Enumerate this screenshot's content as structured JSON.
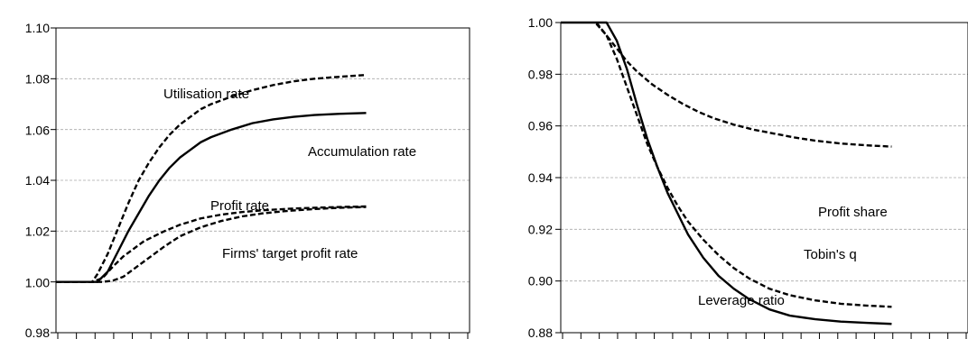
{
  "chart_data": [
    {
      "type": "line",
      "ylim": [
        0.98,
        1.1
      ],
      "yticks": [
        0.98,
        1.0,
        1.02,
        1.04,
        1.06,
        1.08,
        1.1
      ],
      "ytick_labels": [
        "0.98",
        "1.00",
        "1.02",
        "1.04",
        "1.06",
        "1.08",
        "1.10"
      ],
      "grid": true,
      "x": [
        0,
        1,
        2,
        3,
        4,
        5,
        6,
        7,
        8,
        9,
        10,
        11,
        12,
        13,
        14,
        15,
        16,
        17,
        18,
        19,
        20,
        21,
        22,
        23,
        24,
        25,
        26,
        27,
        28,
        29,
        30,
        31,
        32,
        33,
        34,
        35,
        36,
        37,
        38,
        39,
        40,
        41,
        42,
        43,
        44,
        45,
        46,
        47,
        48,
        49,
        50,
        51,
        52,
        53,
        54,
        55,
        56,
        57,
        58,
        59,
        60,
        61,
        62,
        63,
        64,
        65,
        66,
        67,
        68,
        69,
        70,
        71,
        72,
        73,
        74,
        75,
        76,
        77,
        78,
        79,
        80
      ],
      "xlim": [
        0,
        80
      ],
      "xtick_count": 23,
      "series": [
        {
          "name": "Utilisation rate",
          "style": "dashed",
          "values": [
            1.0,
            1.0,
            1.0,
            1.0,
            1.0,
            1.0,
            1.0,
            1.0,
            1.0,
            1.0,
            1.0,
            1.0,
            1.0,
            1.0,
            1.0,
            1.0,
            1.0,
            1.0,
            1.0,
            1.0,
            1.0,
            1.0,
            1.0,
            1.0,
            1.0,
            1.0,
            1.0,
            1.0,
            1.0,
            1.0,
            1.0,
            1.0,
            1.0,
            1.0,
            1.0,
            1.0,
            1.0,
            1.0,
            1.0,
            1.0,
            1.0,
            1.0,
            1.0,
            1.0,
            1.0,
            1.0,
            1.0,
            1.0,
            1.0,
            1.0,
            1.0,
            1.0,
            1.0,
            1.0,
            1.0,
            1.0,
            1.0,
            1.0,
            1.0,
            1.0,
            1.0,
            1.0,
            1.0,
            1.0,
            1.0,
            1.0,
            1.0,
            1.0,
            1.0,
            1.0,
            1.0,
            1.0,
            1.0,
            1.0,
            1.0,
            1.0,
            1.0,
            1.0,
            1.0,
            1.0,
            1.0
          ],
          "points": [
            [
              0,
              1.0
            ],
            [
              7,
              1.0
            ],
            [
              8,
              1.003
            ],
            [
              10,
              1.011
            ],
            [
              12,
              1.021
            ],
            [
              14,
              1.031
            ],
            [
              16,
              1.04
            ],
            [
              18,
              1.047
            ],
            [
              20,
              1.053
            ],
            [
              22,
              1.058
            ],
            [
              24,
              1.062
            ],
            [
              26,
              1.065
            ],
            [
              28,
              1.068
            ],
            [
              30,
              1.07
            ],
            [
              34,
              1.073
            ],
            [
              38,
              1.0755
            ],
            [
              42,
              1.0775
            ],
            [
              46,
              1.079
            ],
            [
              50,
              1.08
            ],
            [
              55,
              1.0808
            ],
            [
              60,
              1.0815
            ]
          ]
        },
        {
          "name": "Accumulation rate",
          "style": "solid",
          "points": [
            [
              0,
              1.0
            ],
            [
              8,
              1.0
            ],
            [
              10,
              1.004
            ],
            [
              12,
              1.012
            ],
            [
              14,
              1.02
            ],
            [
              16,
              1.027
            ],
            [
              18,
              1.034
            ],
            [
              20,
              1.04
            ],
            [
              22,
              1.045
            ],
            [
              24,
              1.049
            ],
            [
              26,
              1.052
            ],
            [
              28,
              1.055
            ],
            [
              30,
              1.057
            ],
            [
              34,
              1.06
            ],
            [
              38,
              1.0625
            ],
            [
              42,
              1.064
            ],
            [
              46,
              1.065
            ],
            [
              50,
              1.0657
            ],
            [
              55,
              1.0662
            ],
            [
              60,
              1.0665
            ]
          ]
        },
        {
          "name": "Profit rate",
          "style": "dashed",
          "points": [
            [
              0,
              1.0
            ],
            [
              7,
              1.0
            ],
            [
              9,
              1.0015
            ],
            [
              11,
              1.006
            ],
            [
              13,
              1.01
            ],
            [
              15,
              1.013
            ],
            [
              17,
              1.016
            ],
            [
              19,
              1.018
            ],
            [
              21,
              1.02
            ],
            [
              24,
              1.0225
            ],
            [
              28,
              1.025
            ],
            [
              32,
              1.0265
            ],
            [
              36,
              1.0275
            ],
            [
              40,
              1.0282
            ],
            [
              45,
              1.0288
            ],
            [
              50,
              1.0292
            ],
            [
              55,
              1.0295
            ],
            [
              60,
              1.0297
            ]
          ]
        },
        {
          "name": "Firms' target profit rate",
          "style": "dashed-short",
          "points": [
            [
              0,
              1.0
            ],
            [
              9,
              1.0
            ],
            [
              11,
              1.0005
            ],
            [
              13,
              1.002
            ],
            [
              15,
              1.005
            ],
            [
              17,
              1.008
            ],
            [
              19,
              1.011
            ],
            [
              21,
              1.014
            ],
            [
              24,
              1.018
            ],
            [
              28,
              1.0215
            ],
            [
              32,
              1.024
            ],
            [
              36,
              1.0258
            ],
            [
              40,
              1.027
            ],
            [
              45,
              1.028
            ],
            [
              50,
              1.0287
            ],
            [
              55,
              1.0292
            ],
            [
              60,
              1.0295
            ]
          ]
        }
      ],
      "annotations": [
        "Utilisation rate",
        "Accumulation rate",
        "Profit rate",
        "Firms' target profit rate"
      ]
    },
    {
      "type": "line",
      "ylim": [
        0.88,
        1.0
      ],
      "yticks": [
        0.88,
        0.9,
        0.92,
        0.94,
        0.96,
        0.98,
        1.0
      ],
      "ytick_labels": [
        "0.88",
        "0.90",
        "0.92",
        "0.94",
        "0.96",
        "0.98",
        "1.00"
      ],
      "grid": true,
      "xlim": [
        0,
        80
      ],
      "xtick_count": 23,
      "series": [
        {
          "name": "Profit share",
          "style": "dashed",
          "points": [
            [
              7,
              0.9995
            ],
            [
              9,
              0.995
            ],
            [
              11,
              0.99
            ],
            [
              13,
              0.985
            ],
            [
              15,
              0.981
            ],
            [
              18,
              0.976
            ],
            [
              21,
              0.972
            ],
            [
              24,
              0.9685
            ],
            [
              27,
              0.9655
            ],
            [
              30,
              0.963
            ],
            [
              34,
              0.9605
            ],
            [
              38,
              0.9585
            ],
            [
              42,
              0.957
            ],
            [
              46,
              0.9555
            ],
            [
              50,
              0.9543
            ],
            [
              55,
              0.9532
            ],
            [
              60,
              0.9525
            ],
            [
              65,
              0.952
            ]
          ]
        },
        {
          "name": "Tobin's q",
          "style": "dashed",
          "points": [
            [
              7,
              1.0
            ],
            [
              9,
              0.995
            ],
            [
              11,
              0.986
            ],
            [
              13,
              0.975
            ],
            [
              15,
              0.964
            ],
            [
              17,
              0.953
            ],
            [
              19,
              0.944
            ],
            [
              21,
              0.936
            ],
            [
              23,
              0.929
            ],
            [
              25,
              0.923
            ],
            [
              28,
              0.916
            ],
            [
              31,
              0.91
            ],
            [
              34,
              0.905
            ],
            [
              37,
              0.901
            ],
            [
              41,
              0.897
            ],
            [
              45,
              0.8945
            ],
            [
              50,
              0.8925
            ],
            [
              55,
              0.8912
            ],
            [
              60,
              0.8905
            ],
            [
              65,
              0.89
            ]
          ]
        },
        {
          "name": "Leverage ratio",
          "style": "solid",
          "points": [
            [
              0,
              1.0
            ],
            [
              9,
              1.0
            ],
            [
              11,
              0.993
            ],
            [
              13,
              0.982
            ],
            [
              15,
              0.968
            ],
            [
              17,
              0.955
            ],
            [
              19,
              0.944
            ],
            [
              21,
              0.934
            ],
            [
              23,
              0.926
            ],
            [
              25,
              0.918
            ],
            [
              28,
              0.909
            ],
            [
              31,
              0.902
            ],
            [
              34,
              0.897
            ],
            [
              37,
              0.893
            ],
            [
              41,
              0.889
            ],
            [
              45,
              0.8866
            ],
            [
              50,
              0.8852
            ],
            [
              55,
              0.8843
            ],
            [
              60,
              0.8838
            ],
            [
              65,
              0.8834
            ]
          ]
        }
      ],
      "annotations": [
        "Profit share",
        "Tobin's q",
        "Leverage ratio"
      ]
    }
  ]
}
